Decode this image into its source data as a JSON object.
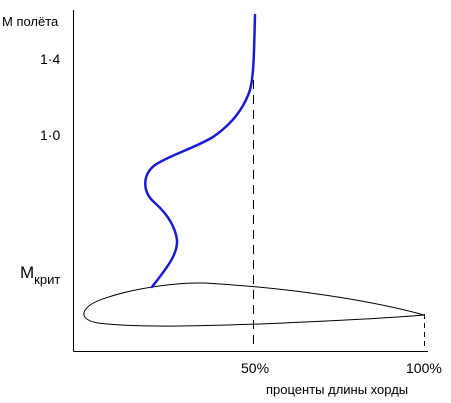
{
  "labels": {
    "y_axis_title": "M полёта",
    "tick_high": "1·4",
    "tick_low": "1·0",
    "m_crit_main": "M",
    "m_crit_sub": "крит",
    "x_tick_mid": "50%",
    "x_tick_end": "100%",
    "x_axis_title": "проценты длины хорды"
  },
  "colors": {
    "curve": "#1a1ad6",
    "axis": "#000000",
    "airfoil": "#000000",
    "reference_line": "#000000"
  }
}
